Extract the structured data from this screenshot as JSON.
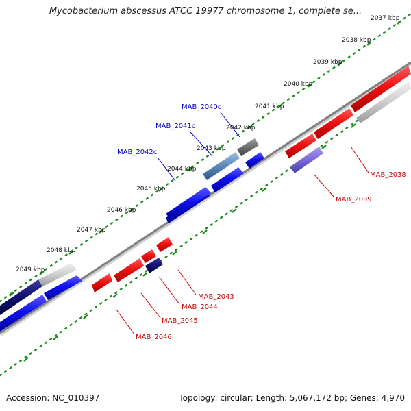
{
  "title": "Mycobacterium abscessus ATCC 19977 chromosome 1, complete se...",
  "footer": {
    "accession": "Accession: NC_010397",
    "summary": "Topology: circular; Length: 5,067,172 bp; Genes: 4,970"
  },
  "colors": {
    "ruler_dots": "#1a8a1a",
    "backbone": "#8a8a8a",
    "forward_label": "#0000cc",
    "reverse_label": "#cc0000",
    "red": "#ee1111",
    "blue": "#1010ee",
    "navy": "#101070",
    "gray_dark": "#707070",
    "gray_light": "#cfcfcf",
    "steel": "#5a86b8",
    "violet": "#7a6ad8"
  },
  "ruler_ticks": [
    {
      "label": "2037 kbp"
    },
    {
      "label": "2038 kbp"
    },
    {
      "label": "2039 kbp"
    },
    {
      "label": "2040 kbp"
    },
    {
      "label": "2041 kbp"
    },
    {
      "label": "2042 kbp"
    },
    {
      "label": "2043 kbp"
    },
    {
      "label": "2044 kbp"
    },
    {
      "label": "2045 kbp"
    },
    {
      "label": "2046 kbp"
    },
    {
      "label": "2047 kbp"
    },
    {
      "label": "2048 kbp"
    },
    {
      "label": "2049 kbp"
    }
  ],
  "gene_labels": [
    {
      "text": "MAB_2040c",
      "strand": "forward"
    },
    {
      "text": "MAB_2041c",
      "strand": "forward"
    },
    {
      "text": "MAB_2042c",
      "strand": "forward"
    },
    {
      "text": "MAB_2038",
      "strand": "reverse"
    },
    {
      "text": "MAB_2039",
      "strand": "reverse"
    },
    {
      "text": "MAB_2043",
      "strand": "reverse"
    },
    {
      "text": "MAB_2044",
      "strand": "reverse"
    },
    {
      "text": "MAB_2045",
      "strand": "reverse"
    },
    {
      "text": "MAB_2046",
      "strand": "reverse"
    }
  ]
}
